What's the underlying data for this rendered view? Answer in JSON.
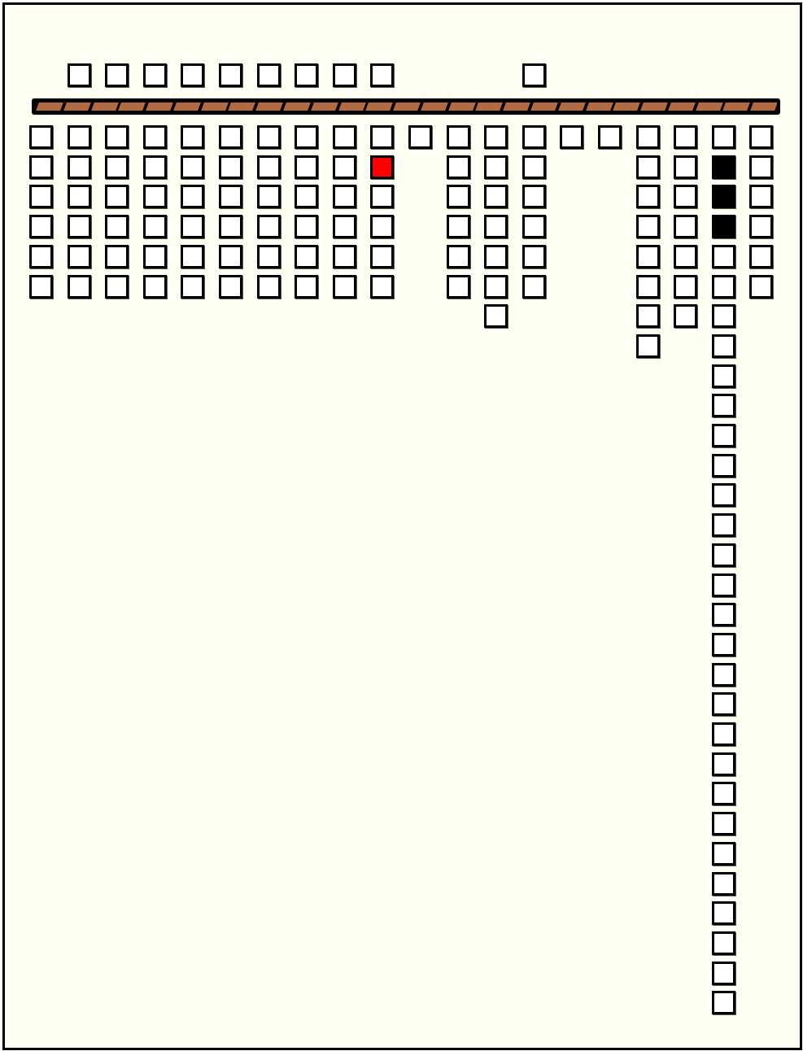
{
  "game": {
    "colors": {
      "background": "#fffff4",
      "cell": "#ffffff",
      "highlight": "#ff0000",
      "filled": "#000000",
      "bar": "#b06a44"
    },
    "column_count": 20,
    "top_row_columns": [
      1,
      2,
      3,
      4,
      5,
      6,
      7,
      8,
      9,
      13
    ],
    "columns": [
      {
        "cells": 6
      },
      {
        "cells": 6
      },
      {
        "cells": 6
      },
      {
        "cells": 6
      },
      {
        "cells": 6
      },
      {
        "cells": 6
      },
      {
        "cells": 6
      },
      {
        "cells": 6
      },
      {
        "cells": 6
      },
      {
        "cells": 6,
        "red": [
          1
        ]
      },
      {
        "cells": 1
      },
      {
        "cells": 6
      },
      {
        "cells": 7
      },
      {
        "cells": 6
      },
      {
        "cells": 1
      },
      {
        "cells": 1
      },
      {
        "cells": 8
      },
      {
        "cells": 7
      },
      {
        "cells": 30,
        "black": [
          1,
          2,
          3
        ]
      },
      {
        "cells": 6
      }
    ],
    "bar_segments": 27
  }
}
